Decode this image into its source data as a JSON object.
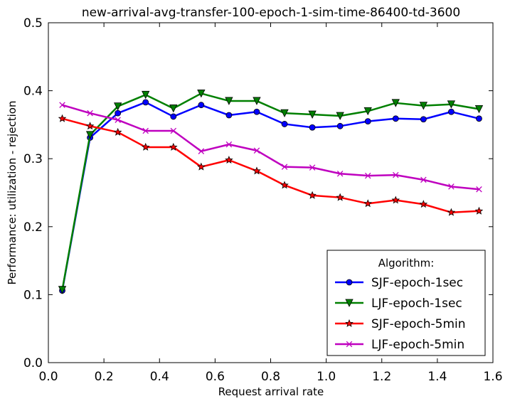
{
  "chart_data": {
    "type": "line",
    "title": "new-arrival-avg-transfer-100-epoch-1-sim-time-86400-td-3600",
    "xlabel": "Request arrival rate",
    "ylabel": "Performance: utilization - rejection",
    "xlim": [
      0.0,
      1.6
    ],
    "ylim": [
      0.0,
      0.5
    ],
    "xticks": [
      "0.0",
      "0.2",
      "0.4",
      "0.6",
      "0.8",
      "1.0",
      "1.2",
      "1.4",
      "1.6"
    ],
    "yticks": [
      "0.0",
      "0.1",
      "0.2",
      "0.3",
      "0.4",
      "0.5"
    ],
    "grid": false,
    "legend": {
      "title": "Algorithm:",
      "position": "lower right"
    },
    "x": [
      0.05,
      0.15,
      0.25,
      0.35,
      0.45,
      0.55,
      0.65,
      0.75,
      0.85,
      0.95,
      1.05,
      1.15,
      1.25,
      1.35,
      1.45,
      1.55
    ],
    "series": [
      {
        "name": "SJF-epoch-1sec",
        "color": "#0000ff",
        "marker": "circle",
        "values": [
          0.106,
          0.331,
          0.367,
          0.383,
          0.362,
          0.379,
          0.364,
          0.369,
          0.351,
          0.346,
          0.348,
          0.355,
          0.359,
          0.358,
          0.369,
          0.359
        ]
      },
      {
        "name": "LJF-epoch-1sec",
        "color": "#008000",
        "marker": "triangle-down",
        "values": [
          0.107,
          0.335,
          0.377,
          0.394,
          0.374,
          0.396,
          0.385,
          0.385,
          0.367,
          0.365,
          0.363,
          0.37,
          0.382,
          0.378,
          0.38,
          0.373
        ]
      },
      {
        "name": "SJF-epoch-5min",
        "color": "#ff0000",
        "marker": "star",
        "values": [
          0.359,
          0.348,
          0.339,
          0.317,
          0.317,
          0.288,
          0.298,
          0.282,
          0.261,
          0.246,
          0.243,
          0.234,
          0.239,
          0.233,
          0.221,
          0.223
        ]
      },
      {
        "name": "LJF-epoch-5min",
        "color": "#bf00bf",
        "marker": "x",
        "values": [
          0.379,
          0.367,
          0.357,
          0.341,
          0.341,
          0.311,
          0.321,
          0.312,
          0.288,
          0.287,
          0.278,
          0.275,
          0.276,
          0.269,
          0.259,
          0.255
        ]
      }
    ]
  }
}
